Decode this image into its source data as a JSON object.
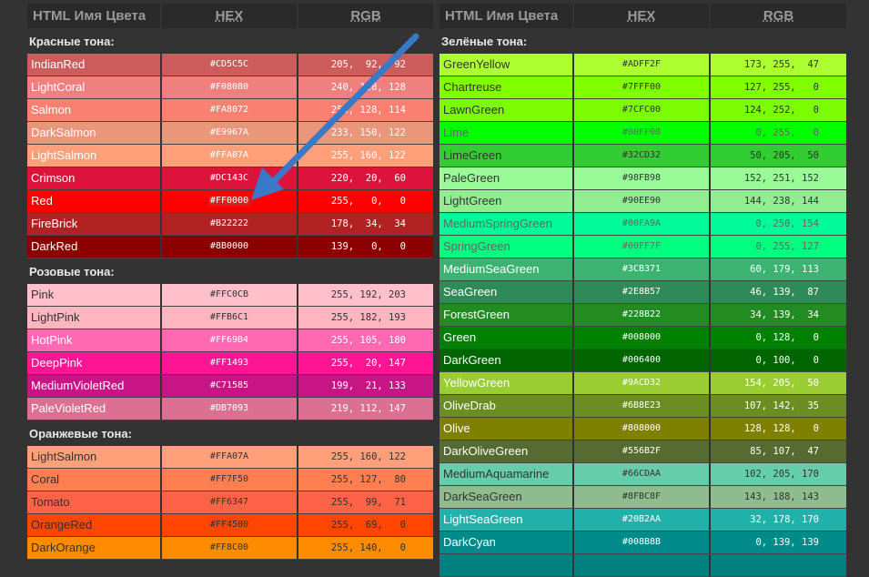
{
  "headers": {
    "name": "HTML Имя Цвета",
    "hex": "HEX",
    "rgb": "RGB"
  },
  "left": [
    {
      "title": "Красные тона:",
      "rows": [
        {
          "name": "IndianRed",
          "hex": "#CD5C5C",
          "rgb": "205,  92,  92",
          "bg": "#CD5C5C",
          "fg": "#ffffff"
        },
        {
          "name": "LightCoral",
          "hex": "#F08080",
          "rgb": "240, 128, 128",
          "bg": "#F08080",
          "fg": "#ffffff"
        },
        {
          "name": "Salmon",
          "hex": "#FA8072",
          "rgb": "250, 128, 114",
          "bg": "#FA8072",
          "fg": "#ffffff"
        },
        {
          "name": "DarkSalmon",
          "hex": "#E9967A",
          "rgb": "233, 150, 122",
          "bg": "#E9967A",
          "fg": "#ffffff"
        },
        {
          "name": "LightSalmon",
          "hex": "#FFA07A",
          "rgb": "255, 160, 122",
          "bg": "#FFA07A",
          "fg": "#ffffff"
        },
        {
          "name": "Crimson",
          "hex": "#DC143C",
          "rgb": "220,  20,  60",
          "bg": "#DC143C",
          "fg": "#ffffff"
        },
        {
          "name": "Red",
          "hex": "#FF0000",
          "rgb": "255,   0,   0",
          "bg": "#FF0000",
          "fg": "#ffffff",
          "highlight": true
        },
        {
          "name": "FireBrick",
          "hex": "#B22222",
          "rgb": "178,  34,  34",
          "bg": "#B22222",
          "fg": "#ffffff"
        },
        {
          "name": "DarkRed",
          "hex": "#8B0000",
          "rgb": "139,   0,   0",
          "bg": "#8B0000",
          "fg": "#ffffff"
        }
      ]
    },
    {
      "title": "Розовые тона:",
      "rows": [
        {
          "name": "Pink",
          "hex": "#FFC0CB",
          "rgb": "255, 192, 203",
          "bg": "#FFC0CB",
          "fg": "#333333"
        },
        {
          "name": "LightPink",
          "hex": "#FFB6C1",
          "rgb": "255, 182, 193",
          "bg": "#FFB6C1",
          "fg": "#333333"
        },
        {
          "name": "HotPink",
          "hex": "#FF69B4",
          "rgb": "255, 105, 180",
          "bg": "#FF69B4",
          "fg": "#ffffff"
        },
        {
          "name": "DeepPink",
          "hex": "#FF1493",
          "rgb": "255,  20, 147",
          "bg": "#FF1493",
          "fg": "#ffffff"
        },
        {
          "name": "MediumVioletRed",
          "hex": "#C71585",
          "rgb": "199,  21, 133",
          "bg": "#C71585",
          "fg": "#ffffff"
        },
        {
          "name": "PaleVioletRed",
          "hex": "#DB7093",
          "rgb": "219, 112, 147",
          "bg": "#DB7093",
          "fg": "#ffffff"
        }
      ]
    },
    {
      "title": "Оранжевые тона:",
      "rows": [
        {
          "name": "LightSalmon",
          "hex": "#FFA07A",
          "rgb": "255, 160, 122",
          "bg": "#FFA07A",
          "fg": "#333333"
        },
        {
          "name": "Coral",
          "hex": "#FF7F50",
          "rgb": "255, 127,  80",
          "bg": "#FF7F50",
          "fg": "#333333"
        },
        {
          "name": "Tomato",
          "hex": "#FF6347",
          "rgb": "255,  99,  71",
          "bg": "#FF6347",
          "fg": "#333333"
        },
        {
          "name": "OrangeRed",
          "hex": "#FF4500",
          "rgb": "255,  69,   0",
          "bg": "#FF4500",
          "fg": "#333333"
        },
        {
          "name": "DarkOrange",
          "hex": "#FF8C00",
          "rgb": "255, 140,   0",
          "bg": "#FF8C00",
          "fg": "#333333"
        }
      ]
    }
  ],
  "right": [
    {
      "title": "Зелёные тона:",
      "rows": [
        {
          "name": "GreenYellow",
          "hex": "#ADFF2F",
          "rgb": "173, 255,  47",
          "bg": "#ADFF2F",
          "fg": "#333333"
        },
        {
          "name": "Chartreuse",
          "hex": "#7FFF00",
          "rgb": "127, 255,   0",
          "bg": "#7FFF00",
          "fg": "#333333"
        },
        {
          "name": "LawnGreen",
          "hex": "#7CFC00",
          "rgb": "124, 252,   0",
          "bg": "#7CFC00",
          "fg": "#333333"
        },
        {
          "name": "Lime",
          "hex": "#00FF00",
          "rgb": "0, 255,   0",
          "bg": "#00FF00",
          "fg": "#666666"
        },
        {
          "name": "LimeGreen",
          "hex": "#32CD32",
          "rgb": "50, 205,  50",
          "bg": "#32CD32",
          "fg": "#333333"
        },
        {
          "name": "PaleGreen",
          "hex": "#98FB98",
          "rgb": "152, 251, 152",
          "bg": "#98FB98",
          "fg": "#333333"
        },
        {
          "name": "LightGreen",
          "hex": "#90EE90",
          "rgb": "144, 238, 144",
          "bg": "#90EE90",
          "fg": "#333333"
        },
        {
          "name": "MediumSpringGreen",
          "hex": "#00FA9A",
          "rgb": "0, 250, 154",
          "bg": "#00FA9A",
          "fg": "#666666"
        },
        {
          "name": "SpringGreen",
          "hex": "#00FF7F",
          "rgb": "0, 255, 127",
          "bg": "#00FF7F",
          "fg": "#666666"
        },
        {
          "name": "MediumSeaGreen",
          "hex": "#3CB371",
          "rgb": "60, 179, 113",
          "bg": "#3CB371",
          "fg": "#ffffff"
        },
        {
          "name": "SeaGreen",
          "hex": "#2E8B57",
          "rgb": "46, 139,  87",
          "bg": "#2E8B57",
          "fg": "#ffffff"
        },
        {
          "name": "ForestGreen",
          "hex": "#228B22",
          "rgb": "34, 139,  34",
          "bg": "#228B22",
          "fg": "#ffffff"
        },
        {
          "name": "Green",
          "hex": "#008000",
          "rgb": "0, 128,   0",
          "bg": "#008000",
          "fg": "#ffffff"
        },
        {
          "name": "DarkGreen",
          "hex": "#006400",
          "rgb": "0, 100,   0",
          "bg": "#006400",
          "fg": "#ffffff"
        },
        {
          "name": "YellowGreen",
          "hex": "#9ACD32",
          "rgb": "154, 205,  50",
          "bg": "#9ACD32",
          "fg": "#ffffff"
        },
        {
          "name": "OliveDrab",
          "hex": "#6B8E23",
          "rgb": "107, 142,  35",
          "bg": "#6B8E23",
          "fg": "#ffffff"
        },
        {
          "name": "Olive",
          "hex": "#808000",
          "rgb": "128, 128,   0",
          "bg": "#808000",
          "fg": "#ffffff"
        },
        {
          "name": "DarkOliveGreen",
          "hex": "#556B2F",
          "rgb": "85, 107,  47",
          "bg": "#556B2F",
          "fg": "#ffffff"
        },
        {
          "name": "MediumAquamarine",
          "hex": "#66CDAA",
          "rgb": "102, 205, 170",
          "bg": "#66CDAA",
          "fg": "#333333"
        },
        {
          "name": "DarkSeaGreen",
          "hex": "#8FBC8F",
          "rgb": "143, 188, 143",
          "bg": "#8FBC8F",
          "fg": "#333333"
        },
        {
          "name": "LightSeaGreen",
          "hex": "#20B2AA",
          "rgb": "32, 178, 170",
          "bg": "#20B2AA",
          "fg": "#ffffff"
        },
        {
          "name": "DarkCyan",
          "hex": "#008B8B",
          "rgb": "0, 139, 139",
          "bg": "#008B8B",
          "fg": "#ffffff"
        },
        {
          "name": "",
          "hex": "",
          "rgb": "",
          "bg": "#008080",
          "fg": "#ffffff"
        }
      ]
    }
  ],
  "arrow_color": "#3a78c8"
}
